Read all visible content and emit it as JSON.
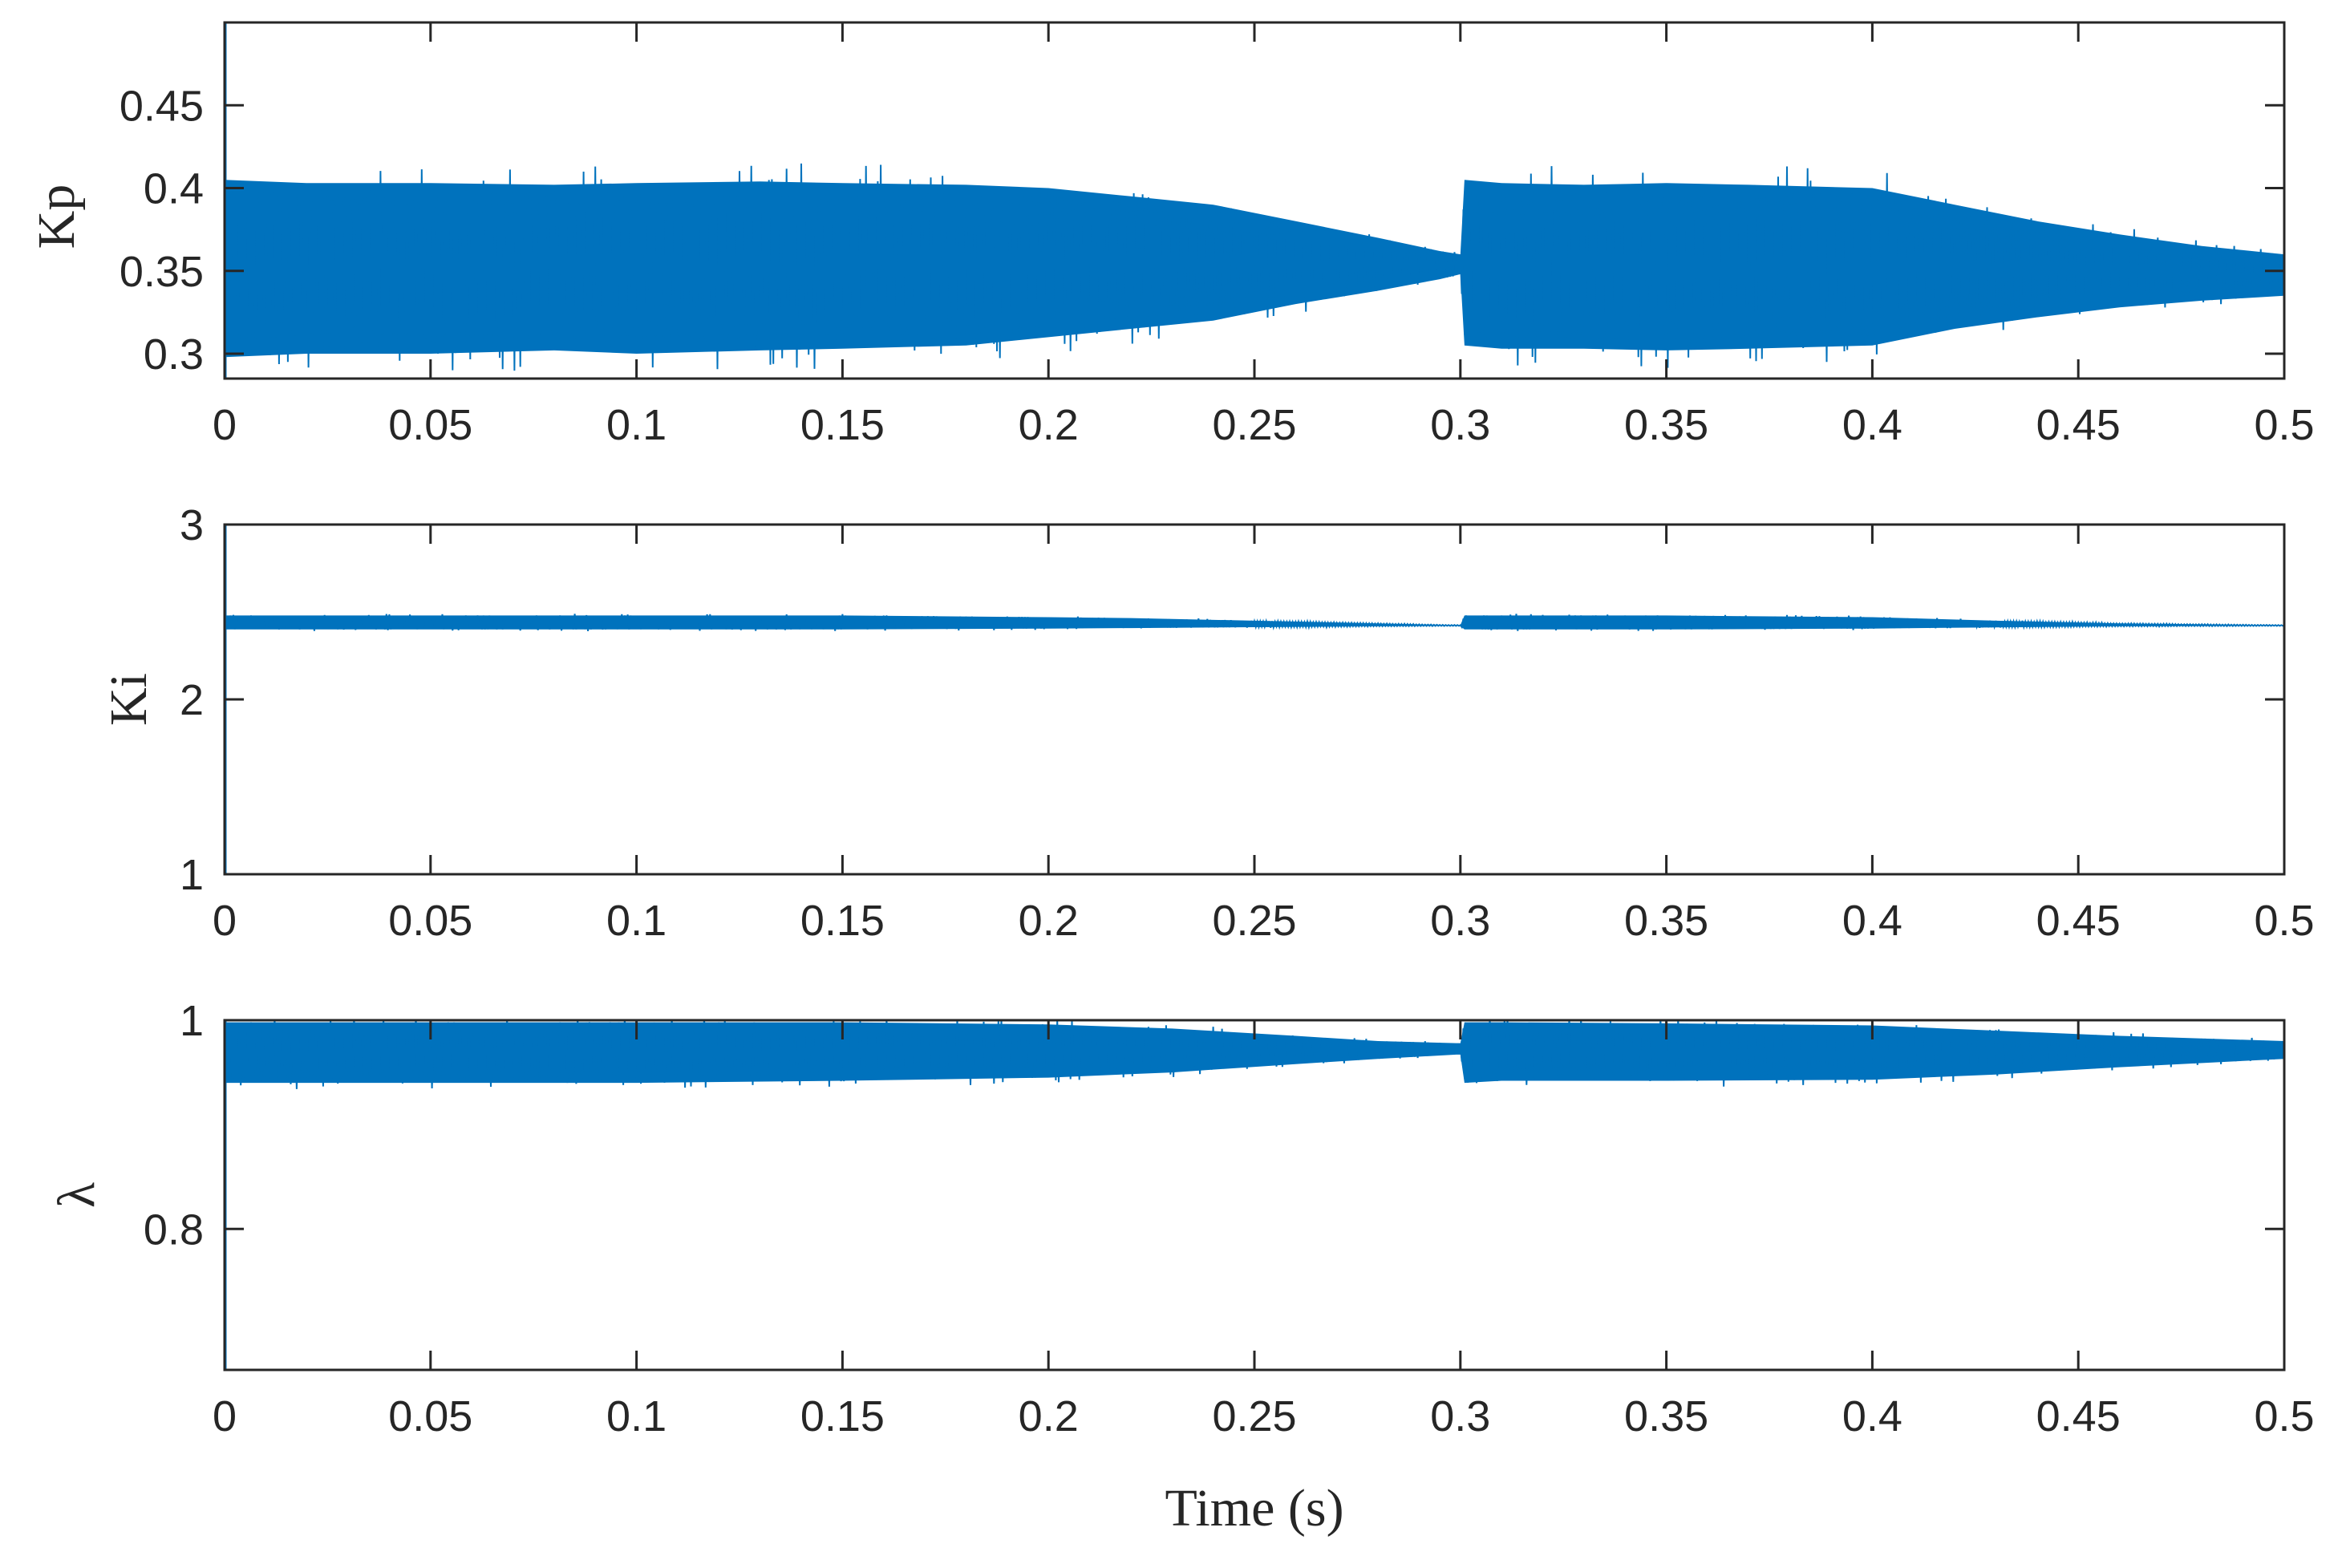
{
  "chart_data": [
    {
      "type": "line",
      "name": "kp",
      "ylabel": "Kp",
      "xlabel": "",
      "xlim": [
        0,
        0.5
      ],
      "ylim": [
        0.285,
        0.5
      ],
      "xticks": [
        0,
        0.05,
        0.1,
        0.15,
        0.2,
        0.25,
        0.3,
        0.35,
        0.4,
        0.45,
        0.5
      ],
      "xtick_labels": [
        "0",
        "0.05",
        "0.1",
        "0.15",
        "0.2",
        "0.25",
        "0.3",
        "0.35",
        "0.4",
        "0.45",
        "0.5"
      ],
      "yticks": [
        0.3,
        0.35,
        0.4,
        0.45
      ],
      "ytick_labels": [
        "0.3",
        "0.35",
        "0.4",
        "0.45"
      ],
      "grid": false,
      "color": "#0072BD",
      "series": [
        {
          "x": [
            0,
            0.02,
            0.05,
            0.08,
            0.1,
            0.13,
            0.15,
            0.18,
            0.2,
            0.22,
            0.24,
            0.26,
            0.28,
            0.295,
            0.3,
            0.301,
            0.31,
            0.33,
            0.35,
            0.37,
            0.4,
            0.42,
            0.44,
            0.46,
            0.48,
            0.5
          ],
          "y_upper": [
            0.405,
            0.403,
            0.403,
            0.402,
            0.403,
            0.404,
            0.403,
            0.402,
            0.4,
            0.395,
            0.39,
            0.38,
            0.37,
            0.362,
            0.36,
            0.405,
            0.403,
            0.402,
            0.403,
            0.402,
            0.4,
            0.39,
            0.38,
            0.372,
            0.365,
            0.36
          ],
          "y_lower": [
            0.298,
            0.3,
            0.3,
            0.302,
            0.3,
            0.302,
            0.303,
            0.305,
            0.31,
            0.315,
            0.32,
            0.33,
            0.338,
            0.345,
            0.348,
            0.305,
            0.303,
            0.303,
            0.302,
            0.303,
            0.305,
            0.315,
            0.322,
            0.328,
            0.332,
            0.335
          ]
        }
      ]
    },
    {
      "type": "line",
      "name": "ki",
      "ylabel": "Ki",
      "xlabel": "",
      "xlim": [
        0,
        0.5
      ],
      "ylim": [
        1,
        3
      ],
      "xticks": [
        0,
        0.05,
        0.1,
        0.15,
        0.2,
        0.25,
        0.3,
        0.35,
        0.4,
        0.45,
        0.5
      ],
      "xtick_labels": [
        "0",
        "0.05",
        "0.1",
        "0.15",
        "0.2",
        "0.25",
        "0.3",
        "0.35",
        "0.4",
        "0.45",
        "0.5"
      ],
      "yticks": [
        1,
        2,
        3
      ],
      "ytick_labels": [
        "1",
        "2",
        "3"
      ],
      "grid": false,
      "color": "#0072BD",
      "series": [
        {
          "x": [
            0,
            0.05,
            0.1,
            0.15,
            0.2,
            0.22,
            0.25,
            0.28,
            0.299,
            0.3,
            0.301,
            0.35,
            0.4,
            0.43,
            0.46,
            0.5
          ],
          "y_upper": [
            2.48,
            2.48,
            2.48,
            2.48,
            2.47,
            2.465,
            2.45,
            2.435,
            2.425,
            2.425,
            2.48,
            2.48,
            2.47,
            2.45,
            2.435,
            2.425
          ],
          "y_lower": [
            2.4,
            2.4,
            2.4,
            2.4,
            2.405,
            2.408,
            2.413,
            2.418,
            2.42,
            2.42,
            2.4,
            2.4,
            2.405,
            2.412,
            2.418,
            2.42
          ]
        }
      ]
    },
    {
      "type": "line",
      "name": "lambda",
      "ylabel": "λ",
      "xlabel": "Time (s)",
      "xlim": [
        0,
        0.5
      ],
      "ylim": [
        0.665,
        1.0
      ],
      "xticks": [
        0,
        0.05,
        0.1,
        0.15,
        0.2,
        0.25,
        0.3,
        0.35,
        0.4,
        0.45,
        0.5
      ],
      "xtick_labels": [
        "0",
        "0.05",
        "0.1",
        "0.15",
        "0.2",
        "0.25",
        "0.3",
        "0.35",
        "0.4",
        "0.45",
        "0.5"
      ],
      "yticks": [
        0.8,
        1
      ],
      "ytick_labels": [
        "0.8",
        "1"
      ],
      "grid": false,
      "color": "#0072BD",
      "series": [
        {
          "x": [
            0,
            0.05,
            0.1,
            0.15,
            0.2,
            0.23,
            0.26,
            0.28,
            0.299,
            0.3,
            0.301,
            0.31,
            0.35,
            0.4,
            0.43,
            0.46,
            0.5
          ],
          "y_upper": [
            0.998,
            0.998,
            0.998,
            0.998,
            0.996,
            0.992,
            0.985,
            0.98,
            0.978,
            0.978,
            0.998,
            0.998,
            0.997,
            0.995,
            0.99,
            0.985,
            0.98
          ],
          "y_lower": [
            0.94,
            0.94,
            0.94,
            0.942,
            0.945,
            0.95,
            0.958,
            0.963,
            0.967,
            0.967,
            0.94,
            0.942,
            0.942,
            0.943,
            0.948,
            0.955,
            0.963
          ]
        }
      ]
    }
  ]
}
